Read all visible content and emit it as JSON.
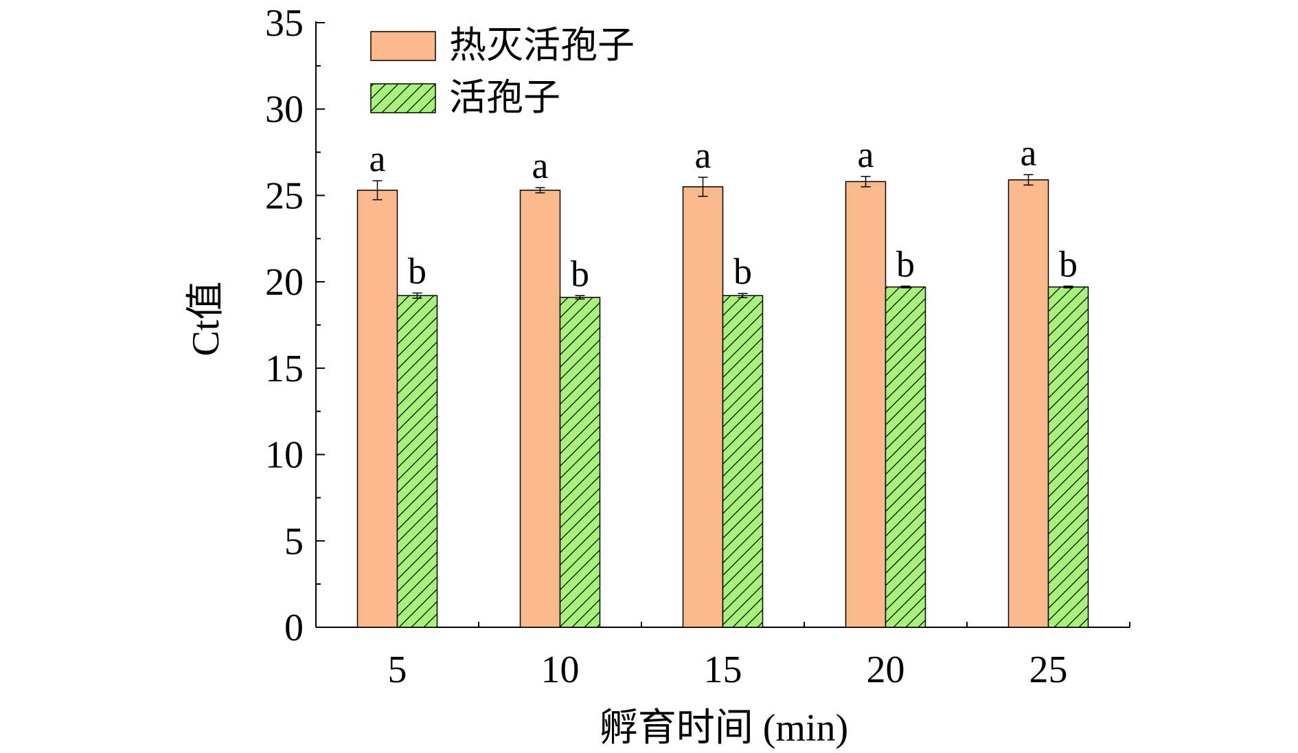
{
  "chart_data": {
    "type": "bar",
    "title": "",
    "xlabel": "孵育时间 (min)",
    "ylabel": "Ct值",
    "categories": [
      "5",
      "10",
      "15",
      "20",
      "25"
    ],
    "ylim": [
      0,
      35
    ],
    "yticks": [
      "0",
      "5",
      "10",
      "15",
      "20",
      "25",
      "30",
      "35"
    ],
    "grid": false,
    "legend_position": "top-left",
    "series": [
      {
        "name": "热灭活孢子",
        "values": [
          25.3,
          25.3,
          25.5,
          25.8,
          25.9
        ],
        "errors": [
          0.55,
          0.15,
          0.55,
          0.3,
          0.3
        ],
        "labels": [
          "a",
          "a",
          "a",
          "a",
          "a"
        ],
        "color": "#F9B98B",
        "pattern": "solid"
      },
      {
        "name": "活孢子",
        "values": [
          19.2,
          19.1,
          19.2,
          19.7,
          19.7
        ],
        "errors": [
          0.15,
          0.1,
          0.12,
          0.05,
          0.05
        ],
        "labels": [
          "b",
          "b",
          "b",
          "b",
          "b"
        ],
        "color": "#A6F27A",
        "pattern": "hatch"
      }
    ]
  }
}
